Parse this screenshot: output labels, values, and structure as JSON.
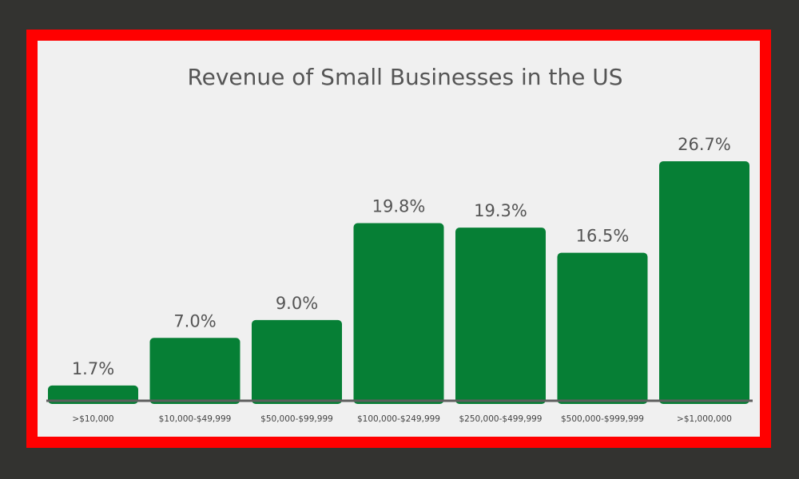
{
  "colors": {
    "background": "#333330",
    "border": "#ff0000",
    "panel": "#f0f0f0",
    "bar": "#067f35",
    "axis": "#5e5e5e",
    "text": "#555555"
  },
  "chart_data": {
    "type": "bar",
    "title": "Revenue of Small Businesses in the US",
    "xlabel": "",
    "ylabel": "",
    "categories": [
      ">$10,000",
      "$10,000-$49,999",
      "$50,000-$99,999",
      "$100,000-$249,999",
      "$250,000-$499,999",
      "$500,000-$999,999",
      ">$1,000,000"
    ],
    "values": [
      1.7,
      7.0,
      9.0,
      19.8,
      19.3,
      16.5,
      26.7
    ],
    "value_labels": [
      "1.7%",
      "7.0%",
      "9.0%",
      "19.8%",
      "19.3%",
      "16.5%",
      "26.7%"
    ],
    "ylim": [
      0,
      26.7
    ],
    "grid": false,
    "legend": "none"
  }
}
